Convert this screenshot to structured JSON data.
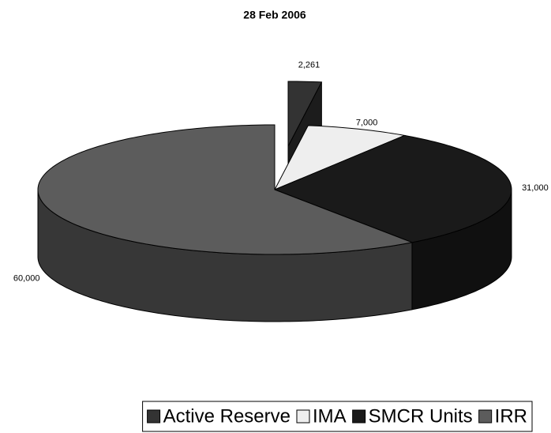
{
  "chart_data": {
    "type": "pie",
    "title": "28 Feb 2006",
    "categories": [
      "Active Reserve",
      "IMA",
      "SMCR Units",
      "IRR"
    ],
    "values": [
      2261,
      7000,
      31000,
      60000
    ],
    "value_labels": [
      "2,261",
      "7,000",
      "31,000",
      "60,000"
    ],
    "colors": [
      "#333333",
      "#eeeeee",
      "#1a1a1a",
      "#5c5c5c"
    ],
    "explode": [
      true,
      false,
      false,
      false
    ],
    "legend": "bottom"
  }
}
